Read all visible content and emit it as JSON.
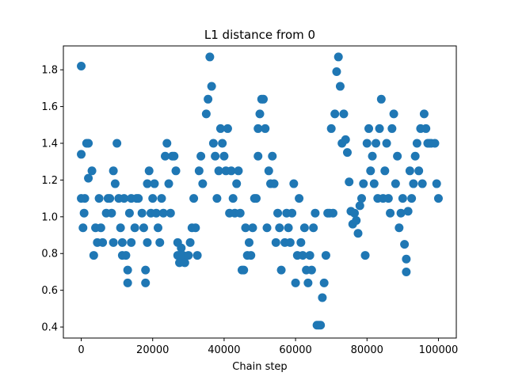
{
  "chart_data": {
    "type": "scatter",
    "title": "L1 distance from 0",
    "xlabel": "Chain step",
    "ylabel": "",
    "xlim": [
      -5000,
      105000
    ],
    "ylim": [
      0.34,
      1.93
    ],
    "xticks": [
      0,
      20000,
      40000,
      60000,
      80000,
      100000
    ],
    "yticks": [
      0.4,
      0.6,
      0.8,
      1.0,
      1.2,
      1.4,
      1.6,
      1.8
    ],
    "xtick_labels": [
      "0",
      "20000",
      "40000",
      "60000",
      "80000",
      "100000"
    ],
    "ytick_labels": [
      "0.4",
      "0.6",
      "0.8",
      "1.0",
      "1.2",
      "1.4",
      "1.6",
      "1.8"
    ],
    "marker_color": "#1f77b4",
    "grid": false,
    "legend": "none",
    "points": [
      [
        0,
        1.82
      ],
      [
        0,
        1.34
      ],
      [
        0,
        1.1
      ],
      [
        500,
        0.94
      ],
      [
        800,
        1.02
      ],
      [
        1000,
        1.1
      ],
      [
        1500,
        1.4
      ],
      [
        2000,
        1.4
      ],
      [
        2000,
        1.21
      ],
      [
        3000,
        1.25
      ],
      [
        3500,
        0.79
      ],
      [
        4000,
        0.94
      ],
      [
        4500,
        0.86
      ],
      [
        5000,
        1.1
      ],
      [
        5500,
        0.94
      ],
      [
        6000,
        0.86
      ],
      [
        7000,
        1.02
      ],
      [
        7500,
        1.1
      ],
      [
        8000,
        1.1
      ],
      [
        8500,
        1.02
      ],
      [
        9000,
        0.86
      ],
      [
        9000,
        1.25
      ],
      [
        9500,
        1.18
      ],
      [
        10000,
        1.4
      ],
      [
        10500,
        1.1
      ],
      [
        11000,
        0.94
      ],
      [
        11500,
        0.79
      ],
      [
        11500,
        0.86
      ],
      [
        12000,
        1.1
      ],
      [
        12500,
        0.79
      ],
      [
        13000,
        0.64
      ],
      [
        13000,
        0.71
      ],
      [
        13500,
        1.02
      ],
      [
        14000,
        0.86
      ],
      [
        14000,
        1.1
      ],
      [
        15000,
        0.94
      ],
      [
        15500,
        1.1
      ],
      [
        16000,
        1.1
      ],
      [
        17000,
        1.02
      ],
      [
        17500,
        0.94
      ],
      [
        18000,
        0.64
      ],
      [
        18000,
        0.71
      ],
      [
        18500,
        0.86
      ],
      [
        18500,
        1.18
      ],
      [
        19000,
        1.25
      ],
      [
        19500,
        1.02
      ],
      [
        20000,
        1.1
      ],
      [
        20500,
        1.18
      ],
      [
        21000,
        1.02
      ],
      [
        21500,
        0.94
      ],
      [
        22000,
        0.86
      ],
      [
        22500,
        1.1
      ],
      [
        23000,
        1.02
      ],
      [
        23500,
        1.33
      ],
      [
        24000,
        1.4
      ],
      [
        24500,
        1.18
      ],
      [
        25000,
        1.02
      ],
      [
        25500,
        1.33
      ],
      [
        26000,
        1.33
      ],
      [
        26500,
        1.25
      ],
      [
        27000,
        0.86
      ],
      [
        27000,
        0.79
      ],
      [
        27500,
        0.75
      ],
      [
        28000,
        0.83
      ],
      [
        28500,
        0.79
      ],
      [
        29000,
        0.75
      ],
      [
        30000,
        0.79
      ],
      [
        30500,
        0.86
      ],
      [
        31000,
        0.94
      ],
      [
        31500,
        1.1
      ],
      [
        32000,
        0.94
      ],
      [
        32500,
        0.79
      ],
      [
        33000,
        1.25
      ],
      [
        33500,
        1.33
      ],
      [
        34000,
        1.18
      ],
      [
        35000,
        1.56
      ],
      [
        35500,
        1.64
      ],
      [
        36000,
        1.87
      ],
      [
        36500,
        1.71
      ],
      [
        37000,
        1.4
      ],
      [
        37500,
        1.33
      ],
      [
        38000,
        1.1
      ],
      [
        38500,
        1.25
      ],
      [
        39000,
        1.48
      ],
      [
        39500,
        1.4
      ],
      [
        40000,
        1.33
      ],
      [
        40500,
        1.25
      ],
      [
        41000,
        1.48
      ],
      [
        41500,
        1.02
      ],
      [
        42000,
        1.25
      ],
      [
        42500,
        1.1
      ],
      [
        43000,
        1.02
      ],
      [
        43500,
        1.18
      ],
      [
        44000,
        1.25
      ],
      [
        44500,
        1.02
      ],
      [
        45000,
        0.71
      ],
      [
        45500,
        0.71
      ],
      [
        46000,
        0.94
      ],
      [
        46500,
        0.79
      ],
      [
        47000,
        0.86
      ],
      [
        47500,
        0.79
      ],
      [
        48000,
        0.94
      ],
      [
        48500,
        1.1
      ],
      [
        49000,
        1.1
      ],
      [
        49500,
        1.33
      ],
      [
        49500,
        1.48
      ],
      [
        50000,
        1.56
      ],
      [
        50500,
        1.64
      ],
      [
        51000,
        1.64
      ],
      [
        51500,
        1.48
      ],
      [
        52000,
        0.94
      ],
      [
        52500,
        1.25
      ],
      [
        53000,
        1.18
      ],
      [
        53500,
        1.33
      ],
      [
        54000,
        1.18
      ],
      [
        54500,
        0.86
      ],
      [
        55000,
        1.02
      ],
      [
        55500,
        0.94
      ],
      [
        56000,
        0.71
      ],
      [
        57000,
        0.86
      ],
      [
        57500,
        1.02
      ],
      [
        58000,
        0.94
      ],
      [
        58500,
        0.86
      ],
      [
        59000,
        1.02
      ],
      [
        59500,
        1.18
      ],
      [
        60000,
        0.64
      ],
      [
        60500,
        0.79
      ],
      [
        61000,
        1.1
      ],
      [
        61500,
        0.86
      ],
      [
        62000,
        0.79
      ],
      [
        62500,
        0.94
      ],
      [
        63000,
        0.71
      ],
      [
        63500,
        0.64
      ],
      [
        64000,
        0.79
      ],
      [
        64500,
        0.71
      ],
      [
        65000,
        0.94
      ],
      [
        65500,
        1.02
      ],
      [
        66000,
        0.41
      ],
      [
        66500,
        0.41
      ],
      [
        67000,
        0.41
      ],
      [
        67500,
        0.56
      ],
      [
        68000,
        0.64
      ],
      [
        68500,
        0.79
      ],
      [
        69000,
        1.02
      ],
      [
        69500,
        1.02
      ],
      [
        70000,
        1.48
      ],
      [
        70500,
        1.02
      ],
      [
        71000,
        1.56
      ],
      [
        71500,
        1.79
      ],
      [
        72000,
        1.87
      ],
      [
        72500,
        1.71
      ],
      [
        73000,
        1.4
      ],
      [
        73500,
        1.56
      ],
      [
        74000,
        1.42
      ],
      [
        74500,
        1.35
      ],
      [
        75000,
        1.19
      ],
      [
        75500,
        1.03
      ],
      [
        76000,
        0.96
      ],
      [
        76500,
        1.02
      ],
      [
        77000,
        0.98
      ],
      [
        77500,
        0.91
      ],
      [
        78000,
        1.06
      ],
      [
        78500,
        1.1
      ],
      [
        79000,
        1.18
      ],
      [
        79500,
        0.79
      ],
      [
        80000,
        1.4
      ],
      [
        80500,
        1.48
      ],
      [
        81000,
        1.25
      ],
      [
        81500,
        1.33
      ],
      [
        82000,
        1.18
      ],
      [
        82500,
        1.4
      ],
      [
        83000,
        1.1
      ],
      [
        83500,
        1.48
      ],
      [
        84000,
        1.64
      ],
      [
        84500,
        1.1
      ],
      [
        85000,
        1.25
      ],
      [
        85500,
        1.4
      ],
      [
        86000,
        1.1
      ],
      [
        86500,
        1.02
      ],
      [
        87000,
        1.48
      ],
      [
        87500,
        1.56
      ],
      [
        88000,
        1.18
      ],
      [
        88500,
        1.33
      ],
      [
        89000,
        0.94
      ],
      [
        89500,
        1.02
      ],
      [
        90000,
        1.1
      ],
      [
        90500,
        0.85
      ],
      [
        91000,
        0.7
      ],
      [
        91000,
        0.77
      ],
      [
        91500,
        1.03
      ],
      [
        92000,
        1.25
      ],
      [
        92500,
        1.1
      ],
      [
        93000,
        1.18
      ],
      [
        93500,
        1.33
      ],
      [
        94000,
        1.4
      ],
      [
        94500,
        1.25
      ],
      [
        95000,
        1.48
      ],
      [
        95500,
        1.18
      ],
      [
        96000,
        1.56
      ],
      [
        96500,
        1.48
      ],
      [
        97000,
        1.4
      ],
      [
        97500,
        1.4
      ],
      [
        98000,
        1.4
      ],
      [
        99000,
        1.4
      ],
      [
        99500,
        1.18
      ],
      [
        100000,
        1.1
      ]
    ]
  }
}
